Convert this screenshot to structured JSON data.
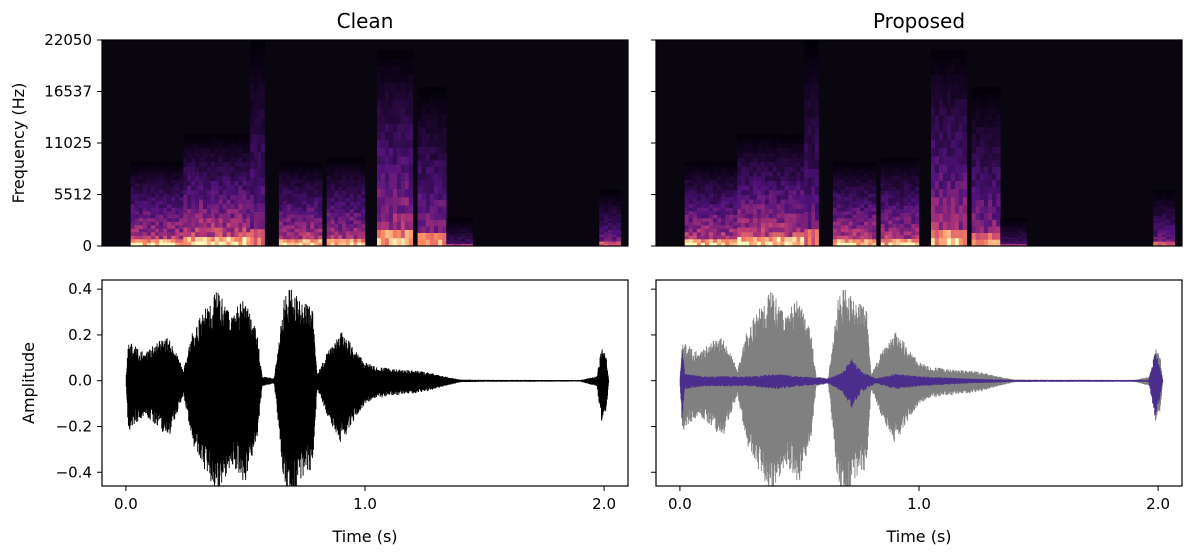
{
  "chart_data": [
    {
      "type": "heatmap",
      "title": "Clean",
      "ylabel": "Frequency (Hz)",
      "yticks": [
        "0",
        "5512",
        "11025",
        "16537",
        "22050"
      ],
      "ylim": [
        0,
        22050
      ],
      "xlim": [
        -0.1,
        2.1
      ],
      "colormap": "magma",
      "background": "#0a0610",
      "bands": [
        {
          "t0": 0.02,
          "t1": 0.24,
          "fmax": 9000,
          "level": 0.85
        },
        {
          "t0": 0.24,
          "t1": 0.52,
          "fmax": 12000,
          "level": 0.9
        },
        {
          "t0": 0.52,
          "t1": 0.58,
          "fmax": 22050,
          "level": 0.55
        },
        {
          "t0": 0.64,
          "t1": 0.82,
          "fmax": 9000,
          "level": 0.85
        },
        {
          "t0": 0.84,
          "t1": 1.0,
          "fmax": 9500,
          "level": 0.8
        },
        {
          "t0": 1.05,
          "t1": 1.2,
          "fmax": 21000,
          "level": 0.75
        },
        {
          "t0": 1.22,
          "t1": 1.34,
          "fmax": 17000,
          "level": 0.65
        },
        {
          "t0": 1.34,
          "t1": 1.45,
          "fmax": 3000,
          "level": 0.35
        },
        {
          "t0": 1.98,
          "t1": 2.07,
          "fmax": 6000,
          "level": 0.55
        }
      ]
    },
    {
      "type": "heatmap",
      "title": "Proposed",
      "ylim": [
        0,
        22050
      ],
      "xlim": [
        -0.1,
        2.1
      ],
      "colormap": "magma",
      "background": "#0a0610",
      "bands": [
        {
          "t0": 0.02,
          "t1": 0.24,
          "fmax": 9000,
          "level": 0.85
        },
        {
          "t0": 0.24,
          "t1": 0.52,
          "fmax": 12000,
          "level": 0.9
        },
        {
          "t0": 0.52,
          "t1": 0.58,
          "fmax": 22050,
          "level": 0.55
        },
        {
          "t0": 0.64,
          "t1": 0.82,
          "fmax": 9000,
          "level": 0.85
        },
        {
          "t0": 0.84,
          "t1": 1.0,
          "fmax": 9500,
          "level": 0.8
        },
        {
          "t0": 1.05,
          "t1": 1.2,
          "fmax": 21000,
          "level": 0.75
        },
        {
          "t0": 1.22,
          "t1": 1.34,
          "fmax": 17000,
          "level": 0.65
        },
        {
          "t0": 1.34,
          "t1": 1.45,
          "fmax": 3000,
          "level": 0.35
        },
        {
          "t0": 1.98,
          "t1": 2.07,
          "fmax": 6000,
          "level": 0.55
        }
      ]
    },
    {
      "type": "line",
      "xlabel": "Time (s)",
      "ylabel": "Amplitude",
      "xticks": [
        "0.0",
        "1.0",
        "2.0"
      ],
      "yticks": [
        "−0.4",
        "−0.2",
        "0.0",
        "0.2",
        "0.4"
      ],
      "xlim": [
        -0.1,
        2.1
      ],
      "ylim": [
        -0.46,
        0.44
      ],
      "series": [
        {
          "color": "#000000",
          "envelope": [
            [
              0.0,
              0.0
            ],
            [
              0.01,
              0.18
            ],
            [
              0.04,
              0.15
            ],
            [
              0.08,
              0.12
            ],
            [
              0.12,
              0.16
            ],
            [
              0.18,
              0.2
            ],
            [
              0.24,
              0.05
            ],
            [
              0.28,
              0.22
            ],
            [
              0.32,
              0.3
            ],
            [
              0.38,
              0.4
            ],
            [
              0.44,
              0.3
            ],
            [
              0.5,
              0.36
            ],
            [
              0.55,
              0.2
            ],
            [
              0.57,
              0.02
            ],
            [
              0.62,
              0.01
            ],
            [
              0.66,
              0.35
            ],
            [
              0.69,
              0.42
            ],
            [
              0.73,
              0.35
            ],
            [
              0.78,
              0.32
            ],
            [
              0.8,
              0.03
            ],
            [
              0.84,
              0.12
            ],
            [
              0.9,
              0.22
            ],
            [
              0.95,
              0.15
            ],
            [
              1.0,
              0.08
            ],
            [
              1.05,
              0.06
            ],
            [
              1.15,
              0.05
            ],
            [
              1.25,
              0.04
            ],
            [
              1.33,
              0.02
            ],
            [
              1.4,
              0.005
            ],
            [
              1.5,
              0.004
            ],
            [
              1.9,
              0.003
            ],
            [
              1.97,
              0.02
            ],
            [
              1.99,
              0.15
            ],
            [
              2.01,
              0.1
            ],
            [
              2.02,
              0.0
            ]
          ]
        }
      ]
    },
    {
      "type": "line",
      "xlabel": "Time (s)",
      "xticks": [
        "0.0",
        "1.0",
        "2.0"
      ],
      "xlim": [
        -0.1,
        2.1
      ],
      "ylim": [
        -0.46,
        0.44
      ],
      "series": [
        {
          "color": "#808080",
          "envelope": [
            [
              0.0,
              0.0
            ],
            [
              0.01,
              0.18
            ],
            [
              0.04,
              0.15
            ],
            [
              0.08,
              0.12
            ],
            [
              0.12,
              0.16
            ],
            [
              0.18,
              0.2
            ],
            [
              0.24,
              0.05
            ],
            [
              0.28,
              0.22
            ],
            [
              0.32,
              0.3
            ],
            [
              0.38,
              0.4
            ],
            [
              0.44,
              0.3
            ],
            [
              0.5,
              0.36
            ],
            [
              0.55,
              0.2
            ],
            [
              0.57,
              0.02
            ],
            [
              0.62,
              0.01
            ],
            [
              0.66,
              0.35
            ],
            [
              0.69,
              0.42
            ],
            [
              0.73,
              0.35
            ],
            [
              0.78,
              0.32
            ],
            [
              0.8,
              0.03
            ],
            [
              0.84,
              0.12
            ],
            [
              0.9,
              0.22
            ],
            [
              0.95,
              0.15
            ],
            [
              1.0,
              0.08
            ],
            [
              1.05,
              0.06
            ],
            [
              1.15,
              0.05
            ],
            [
              1.25,
              0.04
            ],
            [
              1.33,
              0.02
            ],
            [
              1.4,
              0.005
            ],
            [
              1.5,
              0.004
            ],
            [
              1.9,
              0.003
            ],
            [
              1.97,
              0.02
            ],
            [
              1.99,
              0.15
            ],
            [
              2.01,
              0.1
            ],
            [
              2.02,
              0.0
            ]
          ]
        },
        {
          "color": "#4b2d8c",
          "envelope": [
            [
              0.0,
              0.0
            ],
            [
              0.01,
              0.15
            ],
            [
              0.02,
              0.03
            ],
            [
              0.1,
              0.02
            ],
            [
              0.3,
              0.02
            ],
            [
              0.4,
              0.03
            ],
            [
              0.5,
              0.02
            ],
            [
              0.62,
              0.01
            ],
            [
              0.68,
              0.04
            ],
            [
              0.72,
              0.1
            ],
            [
              0.76,
              0.04
            ],
            [
              0.82,
              0.01
            ],
            [
              0.9,
              0.03
            ],
            [
              1.0,
              0.02
            ],
            [
              1.2,
              0.01
            ],
            [
              1.4,
              0.004
            ],
            [
              1.96,
              0.004
            ],
            [
              1.99,
              0.14
            ],
            [
              2.02,
              0.0
            ]
          ]
        }
      ]
    }
  ]
}
